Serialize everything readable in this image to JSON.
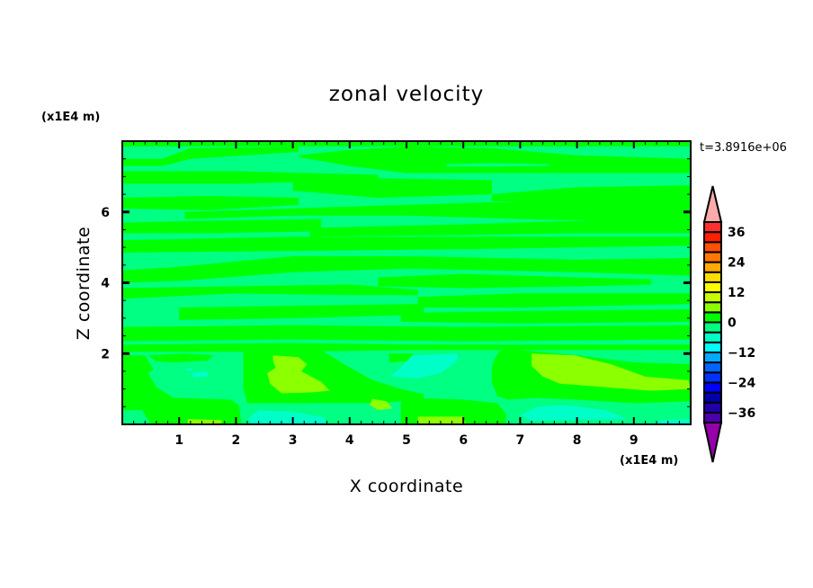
{
  "chart_data": {
    "type": "heatmap",
    "subtype": "filled-contour",
    "title": "zonal velocity",
    "xlabel": "X coordinate",
    "ylabel": "Z coordinate",
    "x_unit_label": "(x1E4 m)",
    "y_unit_label": "(x1E4 m)",
    "time_label": "t=3.8916e+06",
    "xlim": [
      0,
      10
    ],
    "ylim": [
      0,
      8
    ],
    "x_ticks": [
      1,
      2,
      3,
      4,
      5,
      6,
      7,
      8,
      9
    ],
    "y_ticks": [
      2,
      4,
      6
    ],
    "x_minor_step": 0.2,
    "y_minor_step": 0.5,
    "grid": false,
    "background_level": [
      -4,
      0
    ],
    "colorbar": {
      "placement": "right",
      "levels": [
        -40,
        -36,
        -32,
        -28,
        -24,
        -20,
        -16,
        -12,
        -8,
        -4,
        0,
        4,
        8,
        12,
        16,
        20,
        24,
        28,
        32,
        36,
        40
      ],
      "colors": [
        "#4a00aa",
        "#2000aa",
        "#0000aa",
        "#0000ff",
        "#0032ff",
        "#0064ff",
        "#00aaff",
        "#00ffff",
        "#00ffc8",
        "#00ff82",
        "#00ff00",
        "#8cff00",
        "#c8ff00",
        "#ffff00",
        "#ffdc00",
        "#ffaa00",
        "#ff7800",
        "#ff5000",
        "#ff2000",
        "#ff3030"
      ],
      "under_color": "#9600aa",
      "over_color": "#ffaaaa",
      "tick_labels": [
        "-36",
        "-24",
        "-12",
        "0",
        "12",
        "24",
        "36"
      ]
    },
    "bands": [
      {
        "level": [
          0,
          4
        ],
        "x": [
          0,
          10
        ],
        "lo": [
          7.85,
          7.85
        ],
        "hi": [
          8,
          8
        ]
      },
      {
        "level": [
          0,
          4
        ],
        "x": [
          0,
          0.7,
          1.2,
          3.1
        ],
        "lo": [
          7.3,
          7.3,
          7.5,
          7.7
        ],
        "hi": [
          7.5,
          7.5,
          7.8,
          7.85
        ]
      },
      {
        "level": [
          0,
          4
        ],
        "x": [
          3.1,
          4,
          5,
          6.5,
          8,
          10
        ],
        "lo": [
          7.55,
          7.3,
          7.1,
          7.1,
          7.1,
          7.1
        ],
        "hi": [
          7.6,
          7.75,
          7.85,
          7.8,
          7.6,
          7.5
        ]
      },
      {
        "level": [
          -4,
          0
        ],
        "x": [
          5.7,
          6.5,
          7.5
        ],
        "lo": [
          7.28,
          7.28,
          7.3
        ],
        "hi": [
          7.35,
          7.38,
          7.35
        ]
      },
      {
        "level": [
          0,
          4
        ],
        "x": [
          0,
          2,
          4.5
        ],
        "lo": [
          6.8,
          6.8,
          6.9
        ],
        "hi": [
          7.15,
          7.15,
          7.05
        ]
      },
      {
        "level": [
          0,
          4
        ],
        "x": [
          3,
          4.5,
          6.5
        ],
        "lo": [
          6.6,
          6.4,
          6.5
        ],
        "hi": [
          6.9,
          6.95,
          6.9
        ]
      },
      {
        "level": [
          0,
          4
        ],
        "x": [
          6.5,
          8,
          10
        ],
        "lo": [
          6.3,
          6.3,
          6.4
        ],
        "hi": [
          6.5,
          6.7,
          6.75
        ]
      },
      {
        "level": [
          0,
          4
        ],
        "x": [
          0,
          1.5,
          3.1
        ],
        "lo": [
          6.1,
          6.05,
          6.2
        ],
        "hi": [
          6.4,
          6.45,
          6.4
        ]
      },
      {
        "level": [
          0,
          4
        ],
        "x": [
          1.1,
          3,
          5,
          7,
          10
        ],
        "lo": [
          5.8,
          5.9,
          5.9,
          5.8,
          5.7
        ],
        "hi": [
          6.0,
          6.1,
          6.2,
          6.3,
          6.4
        ]
      },
      {
        "level": [
          0,
          4
        ],
        "x": [
          0,
          1.5,
          3.5
        ],
        "lo": [
          5.4,
          5.4,
          5.45
        ],
        "hi": [
          5.7,
          5.75,
          5.8
        ]
      },
      {
        "level": [
          0,
          4
        ],
        "x": [
          3.3,
          6,
          8,
          10
        ],
        "lo": [
          5.3,
          5.35,
          5.4,
          5.4
        ],
        "hi": [
          5.55,
          5.65,
          5.75,
          5.85
        ]
      },
      {
        "level": [
          0,
          4
        ],
        "x": [
          0,
          3,
          6,
          10
        ],
        "lo": [
          4.85,
          4.9,
          4.95,
          5.05
        ],
        "hi": [
          5.2,
          5.3,
          5.3,
          5.3
        ]
      },
      {
        "level": [
          0,
          4
        ],
        "x": [
          0,
          1,
          3,
          5,
          8,
          10
        ],
        "lo": [
          4.0,
          4.05,
          4.3,
          4.4,
          4.3,
          4.2
        ],
        "hi": [
          4.35,
          4.45,
          4.75,
          4.75,
          4.65,
          4.7
        ]
      },
      {
        "level": [
          0,
          4
        ],
        "x": [
          4.5,
          6,
          8,
          9.3
        ],
        "lo": [
          3.9,
          3.85,
          3.9,
          3.95
        ],
        "hi": [
          4.15,
          4.25,
          4.15,
          4.1
        ]
      },
      {
        "level": [
          0,
          4
        ],
        "x": [
          0,
          2,
          4,
          5.2
        ],
        "lo": [
          3.55,
          3.7,
          3.65,
          3.65
        ],
        "hi": [
          3.85,
          3.9,
          3.95,
          3.8
        ]
      },
      {
        "level": [
          0,
          4
        ],
        "x": [
          5.2,
          7,
          10
        ],
        "lo": [
          3.3,
          3.3,
          3.4
        ],
        "hi": [
          3.6,
          3.7,
          3.7
        ]
      },
      {
        "level": [
          0,
          4
        ],
        "x": [
          1.0,
          3,
          5.3
        ],
        "lo": [
          2.95,
          3.0,
          3.1
        ],
        "hi": [
          3.3,
          3.35,
          3.4
        ]
      },
      {
        "level": [
          0,
          4
        ],
        "x": [
          4.9,
          7,
          10
        ],
        "lo": [
          2.9,
          2.85,
          2.9
        ],
        "hi": [
          3.15,
          3.2,
          3.25
        ]
      },
      {
        "level": [
          0,
          4
        ],
        "x": [
          0,
          3,
          6,
          10
        ],
        "lo": [
          2.35,
          2.4,
          2.35,
          2.4
        ],
        "hi": [
          2.75,
          2.8,
          2.75,
          2.8
        ]
      },
      {
        "level": [
          0,
          4
        ],
        "x": [
          0,
          3,
          5,
          10
        ],
        "lo": [
          2.05,
          2.05,
          2.1,
          2.1
        ],
        "hi": [
          2.25,
          2.3,
          2.25,
          2.25
        ]
      }
    ],
    "regions": [
      {
        "level": [
          0,
          4
        ],
        "points": [
          [
            0,
            1.95
          ],
          [
            0.4,
            1.95
          ],
          [
            0.55,
            1.55
          ],
          [
            0.45,
            1.45
          ],
          [
            0.6,
            1.05
          ],
          [
            0.9,
            0.75
          ],
          [
            1.5,
            0.72
          ],
          [
            1.9,
            0.7
          ],
          [
            2.05,
            0.55
          ],
          [
            2.1,
            0
          ],
          [
            0.5,
            0
          ],
          [
            0.35,
            0.4
          ],
          [
            0,
            0.4
          ]
        ]
      },
      {
        "level": [
          0,
          4
        ],
        "points": [
          [
            0.45,
            1.95
          ],
          [
            1.1,
            2.0
          ],
          [
            1.6,
            1.95
          ],
          [
            1.5,
            1.8
          ],
          [
            0.9,
            1.75
          ],
          [
            0.6,
            1.78
          ]
        ]
      },
      {
        "level": [
          0,
          4
        ],
        "points": [
          [
            2.13,
            2.1
          ],
          [
            3.5,
            2.1
          ],
          [
            3.9,
            1.7
          ],
          [
            4.4,
            1.25
          ],
          [
            4.9,
            1.0
          ],
          [
            5.3,
            0.85
          ],
          [
            5.3,
            0.7
          ],
          [
            4.5,
            0.6
          ],
          [
            3.9,
            0.6
          ],
          [
            2.2,
            0.6
          ],
          [
            2.13,
            1.0
          ]
        ]
      },
      {
        "level": [
          0,
          4
        ],
        "points": [
          [
            6.65,
            2.1
          ],
          [
            7.0,
            2.1
          ],
          [
            8.0,
            1.95
          ],
          [
            9.0,
            1.75
          ],
          [
            10,
            1.7
          ],
          [
            10,
            0.65
          ],
          [
            9,
            0.6
          ],
          [
            8,
            0.7
          ],
          [
            7.3,
            0.75
          ],
          [
            6.8,
            0.7
          ],
          [
            6.6,
            0.8
          ],
          [
            6.5,
            1.2
          ],
          [
            6.5,
            1.6
          ],
          [
            6.55,
            1.85
          ]
        ]
      },
      {
        "level": [
          0,
          4
        ],
        "points": [
          [
            4.95,
            0.75
          ],
          [
            6.0,
            0.7
          ],
          [
            6.6,
            0.6
          ],
          [
            6.75,
            0.3
          ],
          [
            6.75,
            0
          ],
          [
            4.9,
            0
          ],
          [
            4.9,
            0.6
          ]
        ]
      },
      {
        "level": [
          0,
          4
        ],
        "points": [
          [
            4.69,
            2.0
          ],
          [
            5.1,
            2.0
          ],
          [
            5.15,
            1.8
          ],
          [
            4.7,
            1.75
          ]
        ]
      },
      {
        "level": [
          4,
          8
        ],
        "points": [
          [
            2.65,
            1.95
          ],
          [
            3.1,
            1.9
          ],
          [
            3.25,
            1.7
          ],
          [
            3.15,
            1.5
          ],
          [
            3.5,
            1.2
          ],
          [
            3.65,
            0.95
          ],
          [
            3.3,
            0.9
          ],
          [
            2.8,
            0.88
          ],
          [
            2.6,
            1.15
          ],
          [
            2.55,
            1.45
          ],
          [
            2.7,
            1.6
          ],
          [
            2.65,
            1.8
          ]
        ]
      },
      {
        "level": [
          4,
          8
        ],
        "points": [
          [
            7.2,
            2.0
          ],
          [
            7.96,
            1.95
          ],
          [
            8.6,
            1.7
          ],
          [
            9.2,
            1.35
          ],
          [
            9.96,
            1.25
          ],
          [
            10,
            1.0
          ],
          [
            9.3,
            0.95
          ],
          [
            8.5,
            1.05
          ],
          [
            7.7,
            1.15
          ],
          [
            7.4,
            1.35
          ],
          [
            7.2,
            1.65
          ]
        ]
      },
      {
        "level": [
          4,
          8
        ],
        "points": [
          [
            4.4,
            0.72
          ],
          [
            4.65,
            0.65
          ],
          [
            4.75,
            0.45
          ],
          [
            4.5,
            0.4
          ],
          [
            4.35,
            0.55
          ]
        ]
      },
      {
        "level": [
          4,
          8
        ],
        "points": [
          [
            1.15,
            0.15
          ],
          [
            1.75,
            0.12
          ],
          [
            1.75,
            0
          ],
          [
            1.15,
            0
          ]
        ]
      },
      {
        "level": [
          4,
          8
        ],
        "points": [
          [
            5.2,
            0.22
          ],
          [
            6.0,
            0.22
          ],
          [
            6.05,
            0
          ],
          [
            5.2,
            0
          ]
        ]
      },
      {
        "level": [
          -8,
          -4
        ],
        "points": [
          [
            5.1,
            1.95
          ],
          [
            5.9,
            2.0
          ],
          [
            5.9,
            1.8
          ],
          [
            5.6,
            1.45
          ],
          [
            5.2,
            1.3
          ],
          [
            4.7,
            1.35
          ],
          [
            4.9,
            1.6
          ]
        ]
      },
      {
        "level": [
          -8,
          -4
        ],
        "points": [
          [
            1.22,
            1.45
          ],
          [
            1.5,
            1.5
          ],
          [
            1.5,
            1.35
          ],
          [
            1.25,
            1.32
          ]
        ]
      },
      {
        "level": [
          -8,
          -4
        ],
        "points": [
          [
            1.1,
            1.55
          ],
          [
            1.25,
            1.6
          ],
          [
            1.2,
            1.5
          ]
        ]
      },
      {
        "level": [
          -8,
          -4
        ],
        "points": [
          [
            2.4,
            0.4
          ],
          [
            3.0,
            0.36
          ],
          [
            3.55,
            0.2
          ],
          [
            3.6,
            0
          ],
          [
            2.3,
            0
          ],
          [
            2.2,
            0.15
          ]
        ]
      },
      {
        "level": [
          -8,
          -4
        ],
        "points": [
          [
            7.3,
            0.5
          ],
          [
            7.8,
            0.55
          ],
          [
            8.5,
            0.4
          ],
          [
            8.9,
            0.15
          ],
          [
            7.2,
            0.1
          ],
          [
            7.0,
            0.25
          ]
        ]
      },
      {
        "level": [
          -8,
          -4
        ],
        "points": [
          [
            9.45,
            0.12
          ],
          [
            10,
            0.15
          ],
          [
            10,
            0
          ],
          [
            9.4,
            0
          ]
        ]
      }
    ]
  }
}
